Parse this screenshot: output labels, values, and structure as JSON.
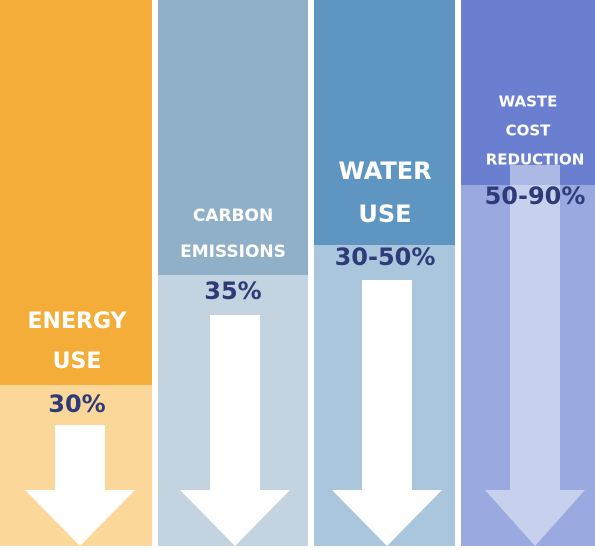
{
  "panels": [
    {
      "lines": [
        "ENERGY",
        "USE"
      ],
      "value": "30%"
    },
    {
      "lines": [
        "CARBON",
        "EMISSIONS"
      ],
      "value": "35%"
    },
    {
      "lines": [
        "WATER",
        "USE"
      ],
      "value": "30-50%"
    },
    {
      "lines": [
        "WASTE",
        "COST",
        "REDUCTION"
      ],
      "value": "50-90%"
    }
  ]
}
